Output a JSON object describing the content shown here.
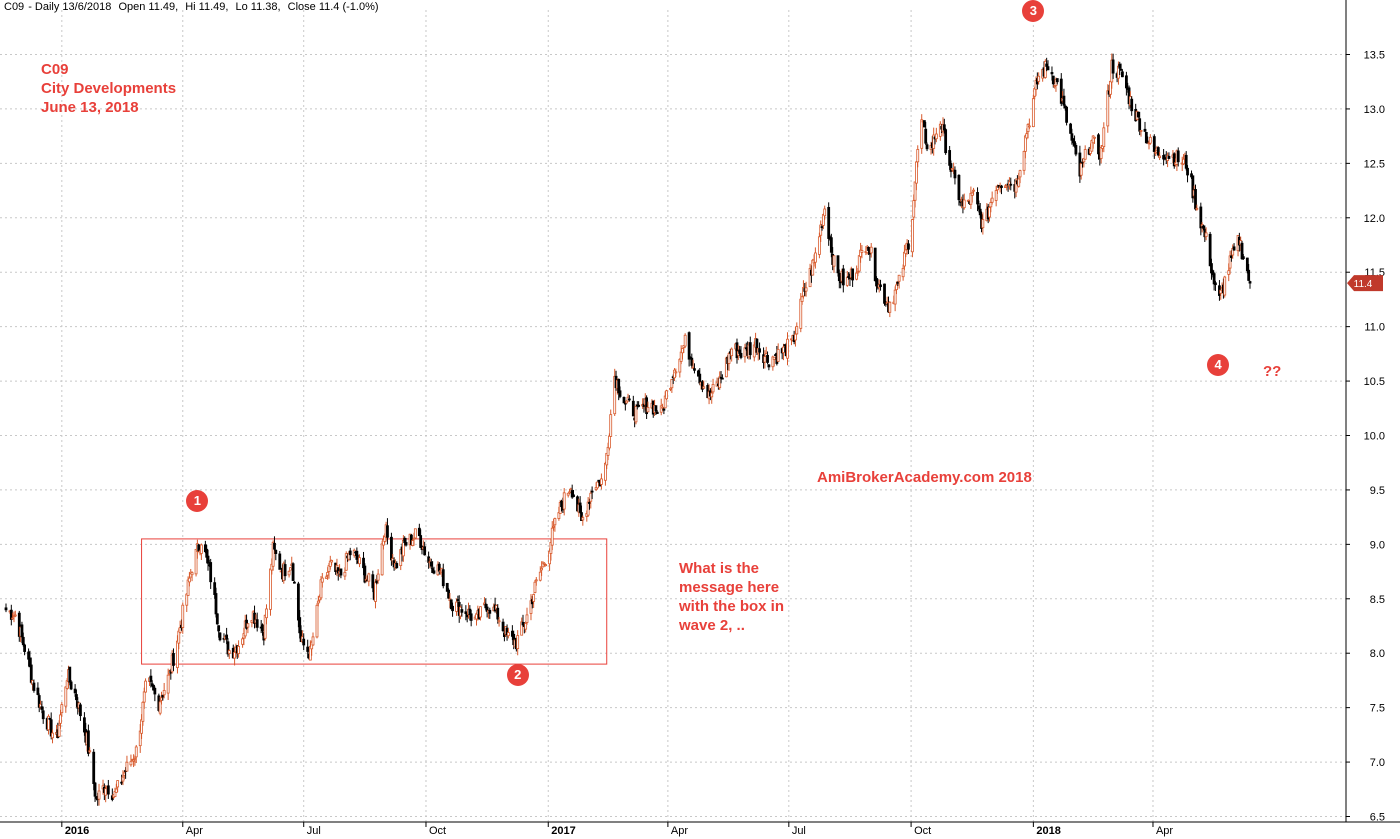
{
  "header": {
    "symbol": "C09",
    "period": "Daily 13/6/2018",
    "open": "Open 11.49,",
    "hi": "Hi 11.49,",
    "lo": "Lo 11.38,",
    "close": "Close 11.4 (-1.0%)"
  },
  "stock_info": {
    "ticker": "C09",
    "company": "City Developments",
    "date": "June 13, 2018"
  },
  "watermark": "AmiBrokerAcademy.com  2018",
  "question_text": [
    "What is the",
    "message here",
    "with the box in",
    "wave 2, .."
  ],
  "question_marks": "??",
  "wave_labels": [
    "1",
    "2",
    "3",
    "4"
  ],
  "colors": {
    "annotation": "#e8403a",
    "up_candle": "#d85a2c",
    "down_candle": "#000000",
    "grid": "#c8c8c8",
    "box": "#e8403a",
    "price_tag": "#c0392b"
  },
  "chart_data": {
    "type": "candlestick",
    "series_name": "C09",
    "last_price_label": "11.4",
    "ylim": [
      6.5,
      13.8
    ],
    "y_ticks": [
      "6.5",
      "7.0",
      "7.5",
      "8.0",
      "8.5",
      "9.0",
      "9.5",
      "10.0",
      "10.5",
      "11.0",
      "11.5",
      "12.0",
      "12.5",
      "13.0",
      "13.5"
    ],
    "y_tick_values": [
      6.5,
      7.0,
      7.5,
      8.0,
      8.5,
      9.0,
      9.5,
      10.0,
      10.5,
      11.0,
      11.5,
      12.0,
      12.5,
      13.0,
      13.5
    ],
    "x_range": [
      "2015-11-20",
      "2018-06-13"
    ],
    "x_ticks": [
      {
        "label": "2016",
        "date": "2016-01-01",
        "bold": true
      },
      {
        "label": "Apr",
        "date": "2016-04-01",
        "bold": false
      },
      {
        "label": "Jul",
        "date": "2016-07-01",
        "bold": false
      },
      {
        "label": "Oct",
        "date": "2016-10-01",
        "bold": false
      },
      {
        "label": "2017",
        "date": "2017-01-01",
        "bold": true
      },
      {
        "label": "Apr",
        "date": "2017-04-01",
        "bold": false
      },
      {
        "label": "Jul",
        "date": "2017-07-01",
        "bold": false
      },
      {
        "label": "Oct",
        "date": "2017-10-01",
        "bold": false
      },
      {
        "label": "2018",
        "date": "2018-01-01",
        "bold": true
      },
      {
        "label": "Apr",
        "date": "2018-04-01",
        "bold": false
      }
    ],
    "close_path": [
      [
        "2015-11-20",
        8.4
      ],
      [
        "2015-11-27",
        8.35
      ],
      [
        "2015-12-04",
        8.05
      ],
      [
        "2015-12-11",
        7.7
      ],
      [
        "2015-12-18",
        7.45
      ],
      [
        "2015-12-28",
        7.2
      ],
      [
        "2016-01-05",
        7.8
      ],
      [
        "2016-01-12",
        7.6
      ],
      [
        "2016-01-20",
        7.2
      ],
      [
        "2016-01-27",
        6.65
      ],
      [
        "2016-02-03",
        6.8
      ],
      [
        "2016-02-10",
        6.7
      ],
      [
        "2016-02-17",
        6.9
      ],
      [
        "2016-02-26",
        7.1
      ],
      [
        "2016-03-05",
        7.75
      ],
      [
        "2016-03-14",
        7.55
      ],
      [
        "2016-03-22",
        7.8
      ],
      [
        "2016-03-31",
        8.3
      ],
      [
        "2016-04-08",
        8.8
      ],
      [
        "2016-04-15",
        9.05
      ],
      [
        "2016-04-22",
        8.7
      ],
      [
        "2016-04-29",
        8.2
      ],
      [
        "2016-05-07",
        8.0
      ],
      [
        "2016-05-14",
        8.1
      ],
      [
        "2016-05-22",
        8.4
      ],
      [
        "2016-06-01",
        8.2
      ],
      [
        "2016-06-08",
        8.95
      ],
      [
        "2016-06-15",
        8.75
      ],
      [
        "2016-06-22",
        8.85
      ],
      [
        "2016-06-29",
        8.1
      ],
      [
        "2016-07-06",
        8.0
      ],
      [
        "2016-07-14",
        8.6
      ],
      [
        "2016-07-21",
        8.8
      ],
      [
        "2016-07-28",
        8.7
      ],
      [
        "2016-08-06",
        8.95
      ],
      [
        "2016-08-15",
        8.75
      ],
      [
        "2016-08-23",
        8.55
      ],
      [
        "2016-08-31",
        9.15
      ],
      [
        "2016-09-08",
        8.8
      ],
      [
        "2016-09-15",
        9.0
      ],
      [
        "2016-09-25",
        9.1
      ],
      [
        "2016-10-03",
        8.85
      ],
      [
        "2016-10-12",
        8.75
      ],
      [
        "2016-10-21",
        8.45
      ],
      [
        "2016-10-30",
        8.4
      ],
      [
        "2016-11-08",
        8.3
      ],
      [
        "2016-11-16",
        8.45
      ],
      [
        "2016-11-24",
        8.35
      ],
      [
        "2016-12-01",
        8.15
      ],
      [
        "2016-12-08",
        8.1
      ],
      [
        "2016-12-15",
        8.3
      ],
      [
        "2016-12-22",
        8.6
      ],
      [
        "2017-01-01",
        8.95
      ],
      [
        "2017-01-09",
        9.3
      ],
      [
        "2017-01-18",
        9.55
      ],
      [
        "2017-01-26",
        9.2
      ],
      [
        "2017-02-04",
        9.55
      ],
      [
        "2017-02-12",
        9.6
      ],
      [
        "2017-02-20",
        10.55
      ],
      [
        "2017-02-28",
        10.3
      ],
      [
        "2017-03-09",
        10.2
      ],
      [
        "2017-03-18",
        10.3
      ],
      [
        "2017-03-27",
        10.2
      ],
      [
        "2017-04-05",
        10.6
      ],
      [
        "2017-04-14",
        10.85
      ],
      [
        "2017-04-23",
        10.6
      ],
      [
        "2017-05-02",
        10.35
      ],
      [
        "2017-05-10",
        10.5
      ],
      [
        "2017-05-19",
        10.8
      ],
      [
        "2017-05-28",
        10.75
      ],
      [
        "2017-06-06",
        10.85
      ],
      [
        "2017-06-15",
        10.7
      ],
      [
        "2017-06-24",
        10.75
      ],
      [
        "2017-07-04",
        10.85
      ],
      [
        "2017-07-12",
        11.3
      ],
      [
        "2017-07-20",
        11.6
      ],
      [
        "2017-07-28",
        12.1
      ],
      [
        "2017-08-05",
        11.5
      ],
      [
        "2017-08-13",
        11.4
      ],
      [
        "2017-08-21",
        11.55
      ],
      [
        "2017-08-29",
        11.8
      ],
      [
        "2017-09-06",
        11.4
      ],
      [
        "2017-09-14",
        11.2
      ],
      [
        "2017-09-22",
        11.4
      ],
      [
        "2017-10-01",
        11.9
      ],
      [
        "2017-10-08",
        12.9
      ],
      [
        "2017-10-15",
        12.6
      ],
      [
        "2017-10-23",
        12.9
      ],
      [
        "2017-11-01",
        12.4
      ],
      [
        "2017-11-09",
        12.1
      ],
      [
        "2017-11-17",
        12.2
      ],
      [
        "2017-11-25",
        11.9
      ],
      [
        "2017-12-03",
        12.3
      ],
      [
        "2017-12-11",
        12.35
      ],
      [
        "2017-12-19",
        12.3
      ],
      [
        "2017-12-27",
        12.8
      ],
      [
        "2018-01-05",
        13.3
      ],
      [
        "2018-01-12",
        13.4
      ],
      [
        "2018-01-20",
        13.2
      ],
      [
        "2018-01-28",
        12.8
      ],
      [
        "2018-02-05",
        12.4
      ],
      [
        "2018-02-13",
        12.7
      ],
      [
        "2018-02-21",
        12.6
      ],
      [
        "2018-03-01",
        13.4
      ],
      [
        "2018-03-09",
        13.3
      ],
      [
        "2018-03-17",
        13.0
      ],
      [
        "2018-03-25",
        12.8
      ],
      [
        "2018-04-02",
        12.6
      ],
      [
        "2018-04-10",
        12.6
      ],
      [
        "2018-04-18",
        12.55
      ],
      [
        "2018-04-26",
        12.5
      ],
      [
        "2018-05-04",
        12.1
      ],
      [
        "2018-05-12",
        11.75
      ],
      [
        "2018-05-20",
        11.2
      ],
      [
        "2018-05-28",
        11.55
      ],
      [
        "2018-06-05",
        11.8
      ],
      [
        "2018-06-13",
        11.4
      ]
    ],
    "box": {
      "start": "2016-03-01",
      "end": "2017-02-14",
      "low": 7.9,
      "high": 9.05
    },
    "wave_points": [
      {
        "label": "1",
        "date": "2016-04-12",
        "price": 9.4
      },
      {
        "label": "2",
        "date": "2016-12-09",
        "price": 7.8
      },
      {
        "label": "3",
        "date": "2018-01-01",
        "price": 13.9
      },
      {
        "label": "4",
        "date": "2018-05-20",
        "price": 10.65
      }
    ]
  }
}
